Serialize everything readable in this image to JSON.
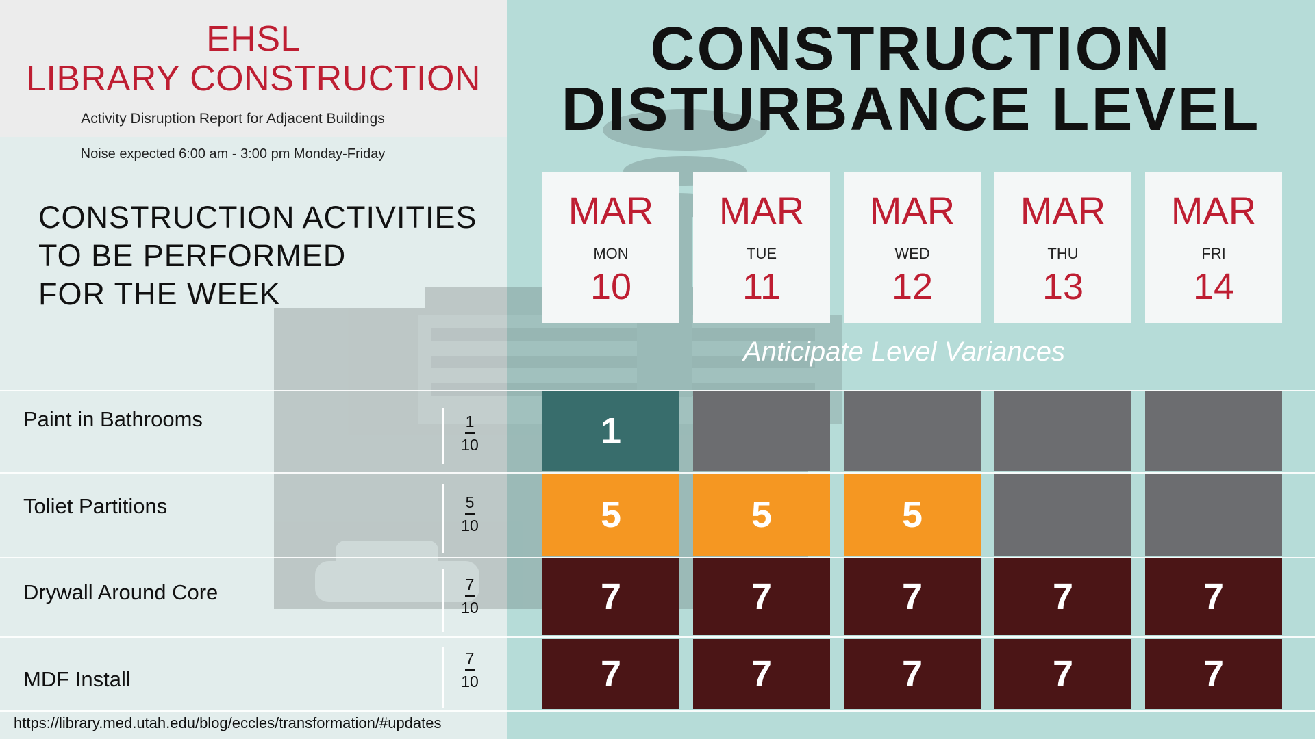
{
  "header": {
    "org_line1": "EHSL",
    "org_line2": "LIBRARY CONSTRUCTION",
    "subtitle": "Activity Disruption Report for Adjacent Buildings",
    "noise_note": "Noise expected 6:00 am - 3:00 pm Monday-Friday"
  },
  "main_title": {
    "line1": "CONSTRUCTION",
    "line2": "DISTURBANCE LEVEL"
  },
  "activities_heading": {
    "line1": "CONSTRUCTION ACTIVITIES",
    "line2": "TO BE PERFORMED",
    "line3": "FOR THE WEEK"
  },
  "days": [
    {
      "month": "MAR",
      "dow": "MON",
      "day": "10"
    },
    {
      "month": "MAR",
      "dow": "TUE",
      "day": "11"
    },
    {
      "month": "MAR",
      "dow": "WED",
      "day": "12"
    },
    {
      "month": "MAR",
      "dow": "THU",
      "day": "13"
    },
    {
      "month": "MAR",
      "dow": "FRI",
      "day": "14"
    }
  ],
  "variance_note": "Anticipate Level Variances",
  "activities": [
    {
      "name": "Paint in Bathrooms",
      "level": "1",
      "scale": "10",
      "cells": [
        "1",
        "",
        "",
        "",
        ""
      ]
    },
    {
      "name": "Toliet Partitions",
      "level": "5",
      "scale": "10",
      "cells": [
        "5",
        "5",
        "5",
        "",
        ""
      ]
    },
    {
      "name": "Drywall Around Core",
      "level": "7",
      "scale": "10",
      "cells": [
        "7",
        "7",
        "7",
        "7",
        "7"
      ]
    },
    {
      "name": "MDF Install",
      "level": "7",
      "scale": "10",
      "cells": [
        "7",
        "7",
        "7",
        "7",
        "7"
      ]
    }
  ],
  "colors": {
    "accent_red": "#be1e32",
    "level_1": "#386d6c",
    "level_5": "#f59722",
    "level_7": "#4b1516",
    "no_activity": "#6c6d70",
    "right_panel": "#b6dcd8"
  },
  "footer": {
    "url": "https://library.med.utah.edu/blog/eccles/transformation/#updates"
  }
}
